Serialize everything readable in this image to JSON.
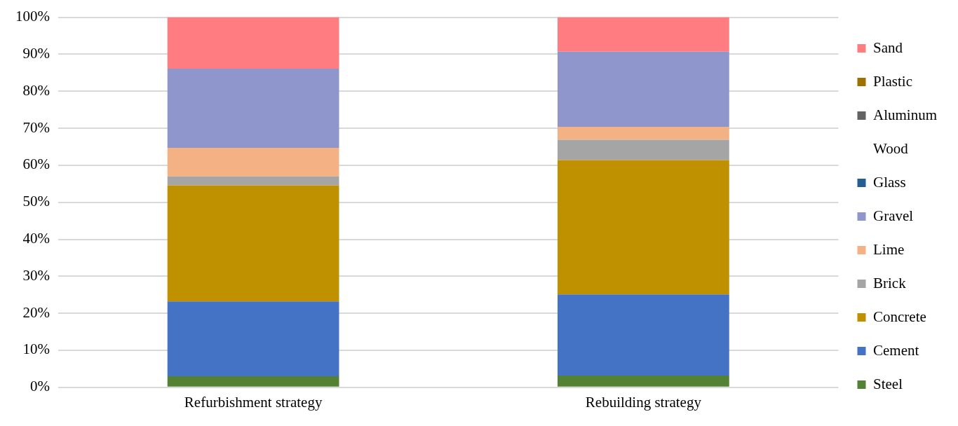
{
  "chart_data": {
    "type": "bar",
    "stacked": true,
    "categories": [
      "Refurbishment strategy",
      "Rebuilding strategy"
    ],
    "series": [
      {
        "name": "Steel",
        "color": "#548235",
        "values": [
          3.0,
          3.2
        ]
      },
      {
        "name": "Cement",
        "color": "#4472c4",
        "values": [
          20.2,
          21.9
        ]
      },
      {
        "name": "Concrete",
        "color": "#bf9000",
        "values": [
          31.4,
          36.3
        ]
      },
      {
        "name": "Brick",
        "color": "#a5a5a5",
        "values": [
          2.4,
          5.5
        ]
      },
      {
        "name": "Lime",
        "color": "#f4b183",
        "values": [
          7.7,
          3.5
        ]
      },
      {
        "name": "Gravel",
        "color": "#8e96cc",
        "values": [
          21.4,
          20.3
        ]
      },
      {
        "name": "Glass",
        "color": "#255e91",
        "values": [
          0,
          0
        ]
      },
      {
        "name": "Wood",
        "values": [
          0,
          0
        ]
      },
      {
        "name": "Aluminum",
        "color": "#636363",
        "values": [
          0,
          0
        ]
      },
      {
        "name": "Plastic",
        "color": "#9e7000",
        "values": [
          0,
          0
        ]
      },
      {
        "name": "Sand",
        "color": "#ff7c80",
        "values": [
          13.9,
          9.3
        ]
      }
    ],
    "ylim": [
      0,
      100
    ],
    "yticks": [
      {
        "value": 0,
        "label": "0%"
      },
      {
        "value": 10,
        "label": "10%"
      },
      {
        "value": 20,
        "label": "20%"
      },
      {
        "value": 30,
        "label": "30%"
      },
      {
        "value": 40,
        "label": "40%"
      },
      {
        "value": 50,
        "label": "50%"
      },
      {
        "value": 60,
        "label": "60%"
      },
      {
        "value": 70,
        "label": "70%"
      },
      {
        "value": 80,
        "label": "80%"
      },
      {
        "value": 90,
        "label": "90%"
      },
      {
        "value": 100,
        "label": "100%"
      }
    ],
    "grid": "y",
    "legend": "right"
  }
}
